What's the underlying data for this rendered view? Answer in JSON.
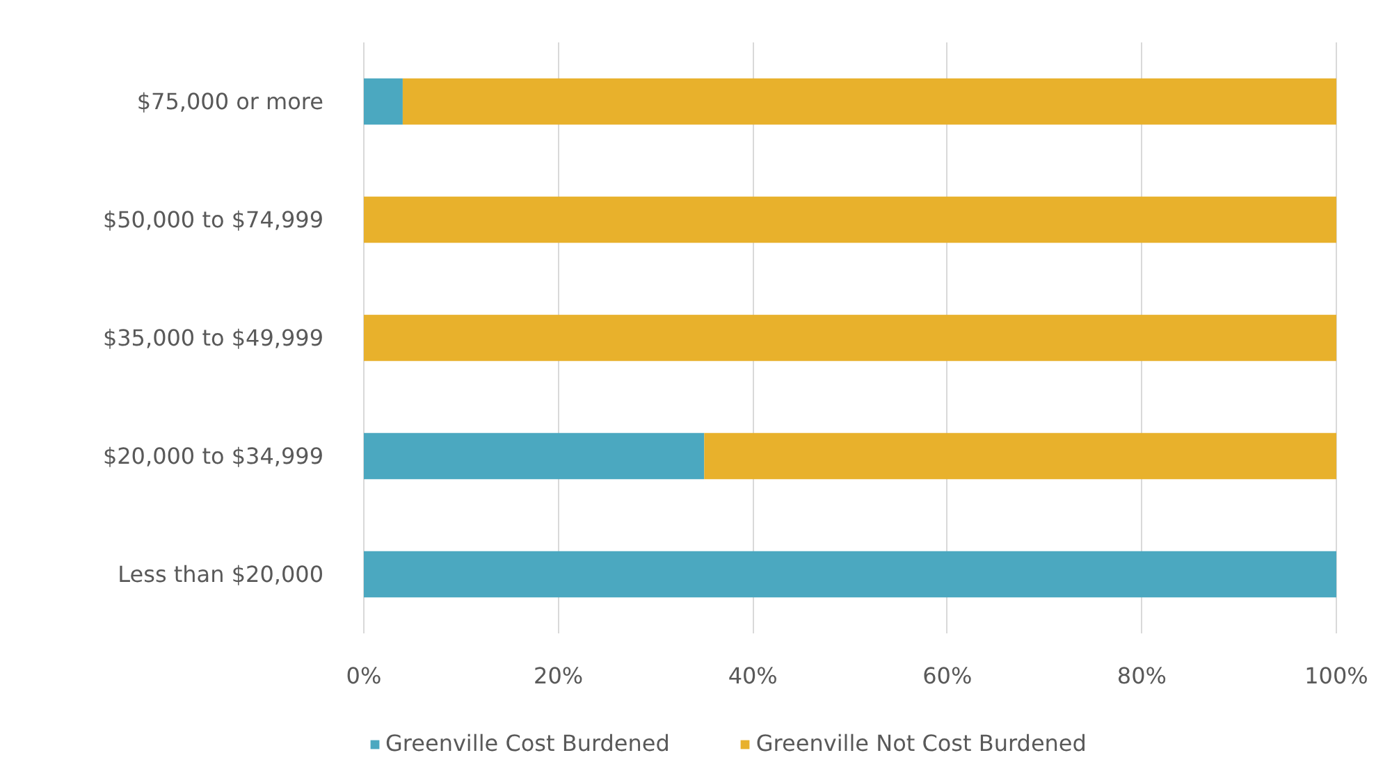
{
  "chart_data": {
    "type": "bar",
    "orientation": "horizontal",
    "stacked": true,
    "categories": [
      "$75,000 or more",
      "$50,000 to $74,999",
      "$35,000 to $49,999",
      "$20,000 to $34,999",
      "Less than $20,000"
    ],
    "series": [
      {
        "name": "Greenville Cost Burdened",
        "color": "#4ba8c0",
        "values": [
          4,
          0,
          0,
          35,
          100
        ]
      },
      {
        "name": "Greenville Not Cost Burdened",
        "color": "#e8b12c",
        "values": [
          96,
          100,
          100,
          65,
          0
        ]
      }
    ],
    "xlim": [
      0,
      100
    ],
    "xticks": [
      {
        "value": 0,
        "label": "0%"
      },
      {
        "value": 20,
        "label": "20%"
      },
      {
        "value": 40,
        "label": "40%"
      },
      {
        "value": 60,
        "label": "60%"
      },
      {
        "value": 80,
        "label": "80%"
      },
      {
        "value": 100,
        "label": "100%"
      }
    ],
    "grid": "x",
    "legend": "bottom"
  }
}
